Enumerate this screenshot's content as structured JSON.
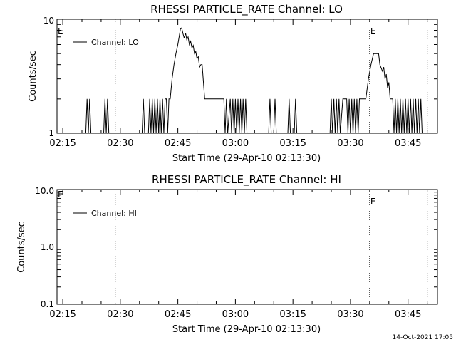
{
  "footer_stamp": "14-Oct-2021 17:05",
  "chart_data": [
    {
      "type": "line",
      "title": "RHESSI PARTICLE_RATE Channel: LO",
      "xlabel": "Start Time (29-Apr-10 02:13:30)",
      "ylabel": "Counts/sec",
      "y_scale": "log",
      "ylim": [
        1,
        10
      ],
      "y_ticks": [
        "1",
        "10"
      ],
      "x_ticks": [
        "02:15",
        "02:30",
        "02:45",
        "03:00",
        "03:15",
        "03:30",
        "03:45"
      ],
      "xlim": [
        "02:13:30",
        "03:52:40"
      ],
      "legend": {
        "label": "Channel: LO",
        "placement": "top-left"
      },
      "markers": [
        {
          "time": "02:28:40",
          "label": ""
        },
        {
          "time": "03:35:00",
          "label": "E"
        },
        {
          "time": "03:50:00",
          "label": ""
        }
      ],
      "edge_label": "E",
      "series": [
        {
          "name": "Channel: LO",
          "points": [
            [
              "02:21:00",
              1
            ],
            [
              "02:21:20",
              2
            ],
            [
              "02:21:40",
              1
            ],
            [
              "02:22:00",
              2
            ],
            [
              "02:22:20",
              1
            ],
            [
              "02:25:40",
              1
            ],
            [
              "02:26:00",
              2
            ],
            [
              "02:26:20",
              1
            ],
            [
              "02:26:40",
              2
            ],
            [
              "02:27:00",
              1
            ],
            [
              "02:35:40",
              1
            ],
            [
              "02:36:00",
              2
            ],
            [
              "02:36:20",
              1
            ],
            [
              "02:37:20",
              1
            ],
            [
              "02:37:40",
              2
            ],
            [
              "02:38:00",
              1
            ],
            [
              "02:38:20",
              2
            ],
            [
              "02:38:40",
              1
            ],
            [
              "02:39:00",
              2
            ],
            [
              "02:39:20",
              1
            ],
            [
              "02:39:40",
              2
            ],
            [
              "02:40:00",
              1
            ],
            [
              "02:40:20",
              2
            ],
            [
              "02:40:40",
              1
            ],
            [
              "02:41:00",
              2
            ],
            [
              "02:41:20",
              1
            ],
            [
              "02:41:40",
              2
            ],
            [
              "02:42:00",
              2
            ],
            [
              "02:42:20",
              1
            ],
            [
              "02:42:40",
              2
            ],
            [
              "02:43:00",
              2
            ],
            [
              "02:43:30",
              3
            ],
            [
              "02:44:00",
              4
            ],
            [
              "02:44:30",
              5
            ],
            [
              "02:45:00",
              6
            ],
            [
              "02:45:20",
              7
            ],
            [
              "02:45:40",
              8.2
            ],
            [
              "02:46:00",
              8.4
            ],
            [
              "02:46:20",
              7.5
            ],
            [
              "02:46:40",
              6.8
            ],
            [
              "02:47:00",
              7.6
            ],
            [
              "02:47:20",
              6.6
            ],
            [
              "02:47:40",
              7
            ],
            [
              "02:48:00",
              6
            ],
            [
              "02:48:20",
              6.4
            ],
            [
              "02:48:40",
              5.6
            ],
            [
              "02:49:00",
              5.9
            ],
            [
              "02:49:20",
              5
            ],
            [
              "02:49:40",
              5.2
            ],
            [
              "02:50:00",
              4.5
            ],
            [
              "02:50:20",
              4.7
            ],
            [
              "02:50:40",
              3.8
            ],
            [
              "02:51:00",
              4
            ],
            [
              "02:51:20",
              4
            ],
            [
              "02:52:00",
              2
            ],
            [
              "02:57:00",
              2
            ],
            [
              "02:57:20",
              1
            ],
            [
              "02:57:40",
              2
            ],
            [
              "02:58:00",
              1
            ],
            [
              "02:58:40",
              2
            ],
            [
              "02:59:00",
              1
            ],
            [
              "02:59:20",
              2
            ],
            [
              "02:59:40",
              1
            ],
            [
              "03:00:00",
              2
            ],
            [
              "03:00:20",
              1
            ],
            [
              "03:00:40",
              2
            ],
            [
              "03:01:00",
              1
            ],
            [
              "03:01:20",
              2
            ],
            [
              "03:01:40",
              1
            ],
            [
              "03:02:00",
              2
            ],
            [
              "03:02:20",
              1
            ],
            [
              "03:02:40",
              2
            ],
            [
              "03:03:00",
              1
            ],
            [
              "03:08:40",
              1
            ],
            [
              "03:09:00",
              2
            ],
            [
              "03:09:20",
              1
            ],
            [
              "03:10:00",
              1
            ],
            [
              "03:10:20",
              2
            ],
            [
              "03:10:40",
              1
            ],
            [
              "03:13:40",
              1
            ],
            [
              "03:14:00",
              2
            ],
            [
              "03:14:20",
              1
            ],
            [
              "03:15:20",
              1
            ],
            [
              "03:15:40",
              2
            ],
            [
              "03:16:00",
              1
            ],
            [
              "03:24:40",
              1
            ],
            [
              "03:25:00",
              2
            ],
            [
              "03:25:20",
              1
            ],
            [
              "03:25:40",
              2
            ],
            [
              "03:26:00",
              1
            ],
            [
              "03:26:20",
              2
            ],
            [
              "03:26:40",
              1
            ],
            [
              "03:27:00",
              2
            ],
            [
              "03:27:20",
              1
            ],
            [
              "03:28:00",
              2
            ],
            [
              "03:29:00",
              2
            ],
            [
              "03:29:20",
              1
            ],
            [
              "03:29:40",
              2
            ],
            [
              "03:30:00",
              1
            ],
            [
              "03:30:20",
              2
            ],
            [
              "03:30:40",
              1
            ],
            [
              "03:31:00",
              2
            ],
            [
              "03:31:20",
              1
            ],
            [
              "03:31:40",
              2
            ],
            [
              "03:32:00",
              1
            ],
            [
              "03:32:20",
              2
            ],
            [
              "03:34:00",
              2
            ],
            [
              "03:34:40",
              3
            ],
            [
              "03:35:20",
              4
            ],
            [
              "03:36:00",
              5
            ],
            [
              "03:37:20",
              5
            ],
            [
              "03:37:40",
              4
            ],
            [
              "03:38:20",
              3.5
            ],
            [
              "03:38:40",
              3.8
            ],
            [
              "03:39:00",
              3
            ],
            [
              "03:39:20",
              3.3
            ],
            [
              "03:39:40",
              2.5
            ],
            [
              "03:40:00",
              2.8
            ],
            [
              "03:40:20",
              2
            ],
            [
              "03:41:00",
              2
            ],
            [
              "03:41:20",
              1
            ],
            [
              "03:41:40",
              2
            ],
            [
              "03:42:00",
              1
            ],
            [
              "03:42:20",
              2
            ],
            [
              "03:42:40",
              1
            ],
            [
              "03:43:00",
              2
            ],
            [
              "03:43:20",
              1
            ],
            [
              "03:43:40",
              2
            ],
            [
              "03:44:00",
              1
            ],
            [
              "03:44:20",
              2
            ],
            [
              "03:44:40",
              1
            ],
            [
              "03:45:00",
              2
            ],
            [
              "03:45:20",
              1
            ],
            [
              "03:45:40",
              2
            ],
            [
              "03:46:00",
              1
            ],
            [
              "03:46:20",
              2
            ],
            [
              "03:46:40",
              1
            ],
            [
              "03:47:00",
              2
            ],
            [
              "03:47:20",
              1
            ],
            [
              "03:47:40",
              2
            ],
            [
              "03:48:00",
              1
            ],
            [
              "03:48:20",
              2
            ],
            [
              "03:48:40",
              1
            ]
          ]
        }
      ]
    },
    {
      "type": "line",
      "title": "RHESSI PARTICLE_RATE Channel: HI",
      "xlabel": "Start Time (29-Apr-10 02:13:30)",
      "ylabel": "Counts/sec",
      "y_scale": "log",
      "ylim": [
        0.1,
        10
      ],
      "y_ticks": [
        "0.1",
        "1.0",
        "10.0"
      ],
      "x_ticks": [
        "02:15",
        "02:30",
        "02:45",
        "03:00",
        "03:15",
        "03:30",
        "03:45"
      ],
      "xlim": [
        "02:13:30",
        "03:52:40"
      ],
      "legend": {
        "label": "Channel: HI",
        "placement": "top-left"
      },
      "markers": [
        {
          "time": "02:28:40",
          "label": ""
        },
        {
          "time": "03:35:00",
          "label": "E"
        },
        {
          "time": "03:50:00",
          "label": ""
        }
      ],
      "edge_label": "E",
      "series": [
        {
          "name": "Channel: HI",
          "points": []
        }
      ]
    }
  ]
}
